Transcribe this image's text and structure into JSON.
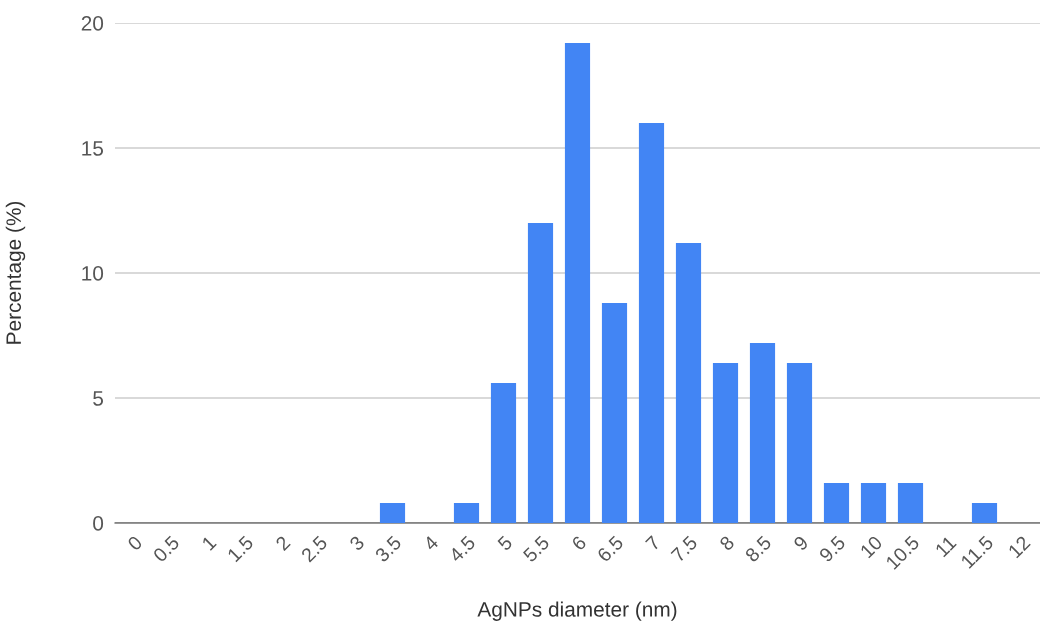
{
  "chart_data": {
    "type": "bar",
    "xlabel": "AgNPs diameter (nm)",
    "ylabel": "Percentage (%)",
    "categories": [
      "0",
      "0.5",
      "1",
      "1.5",
      "2",
      "2.5",
      "3",
      "3.5",
      "4",
      "4.5",
      "5",
      "5.5",
      "6",
      "6.5",
      "7",
      "7.5",
      "8",
      "8.5",
      "9",
      "9.5",
      "10",
      "10.5",
      "11",
      "11.5",
      "12"
    ],
    "values": [
      0,
      0,
      0,
      0,
      0,
      0,
      0,
      0.8,
      0,
      0.8,
      5.6,
      12,
      19.2,
      8.8,
      16,
      11.2,
      6.4,
      7.2,
      6.4,
      1.6,
      1.6,
      1.6,
      0,
      0.8,
      0
    ],
    "color": "#4285f4",
    "ylim": [
      0,
      20
    ],
    "yticks": [
      0,
      5,
      10,
      15,
      20
    ],
    "grid": "y",
    "legend": false
  }
}
